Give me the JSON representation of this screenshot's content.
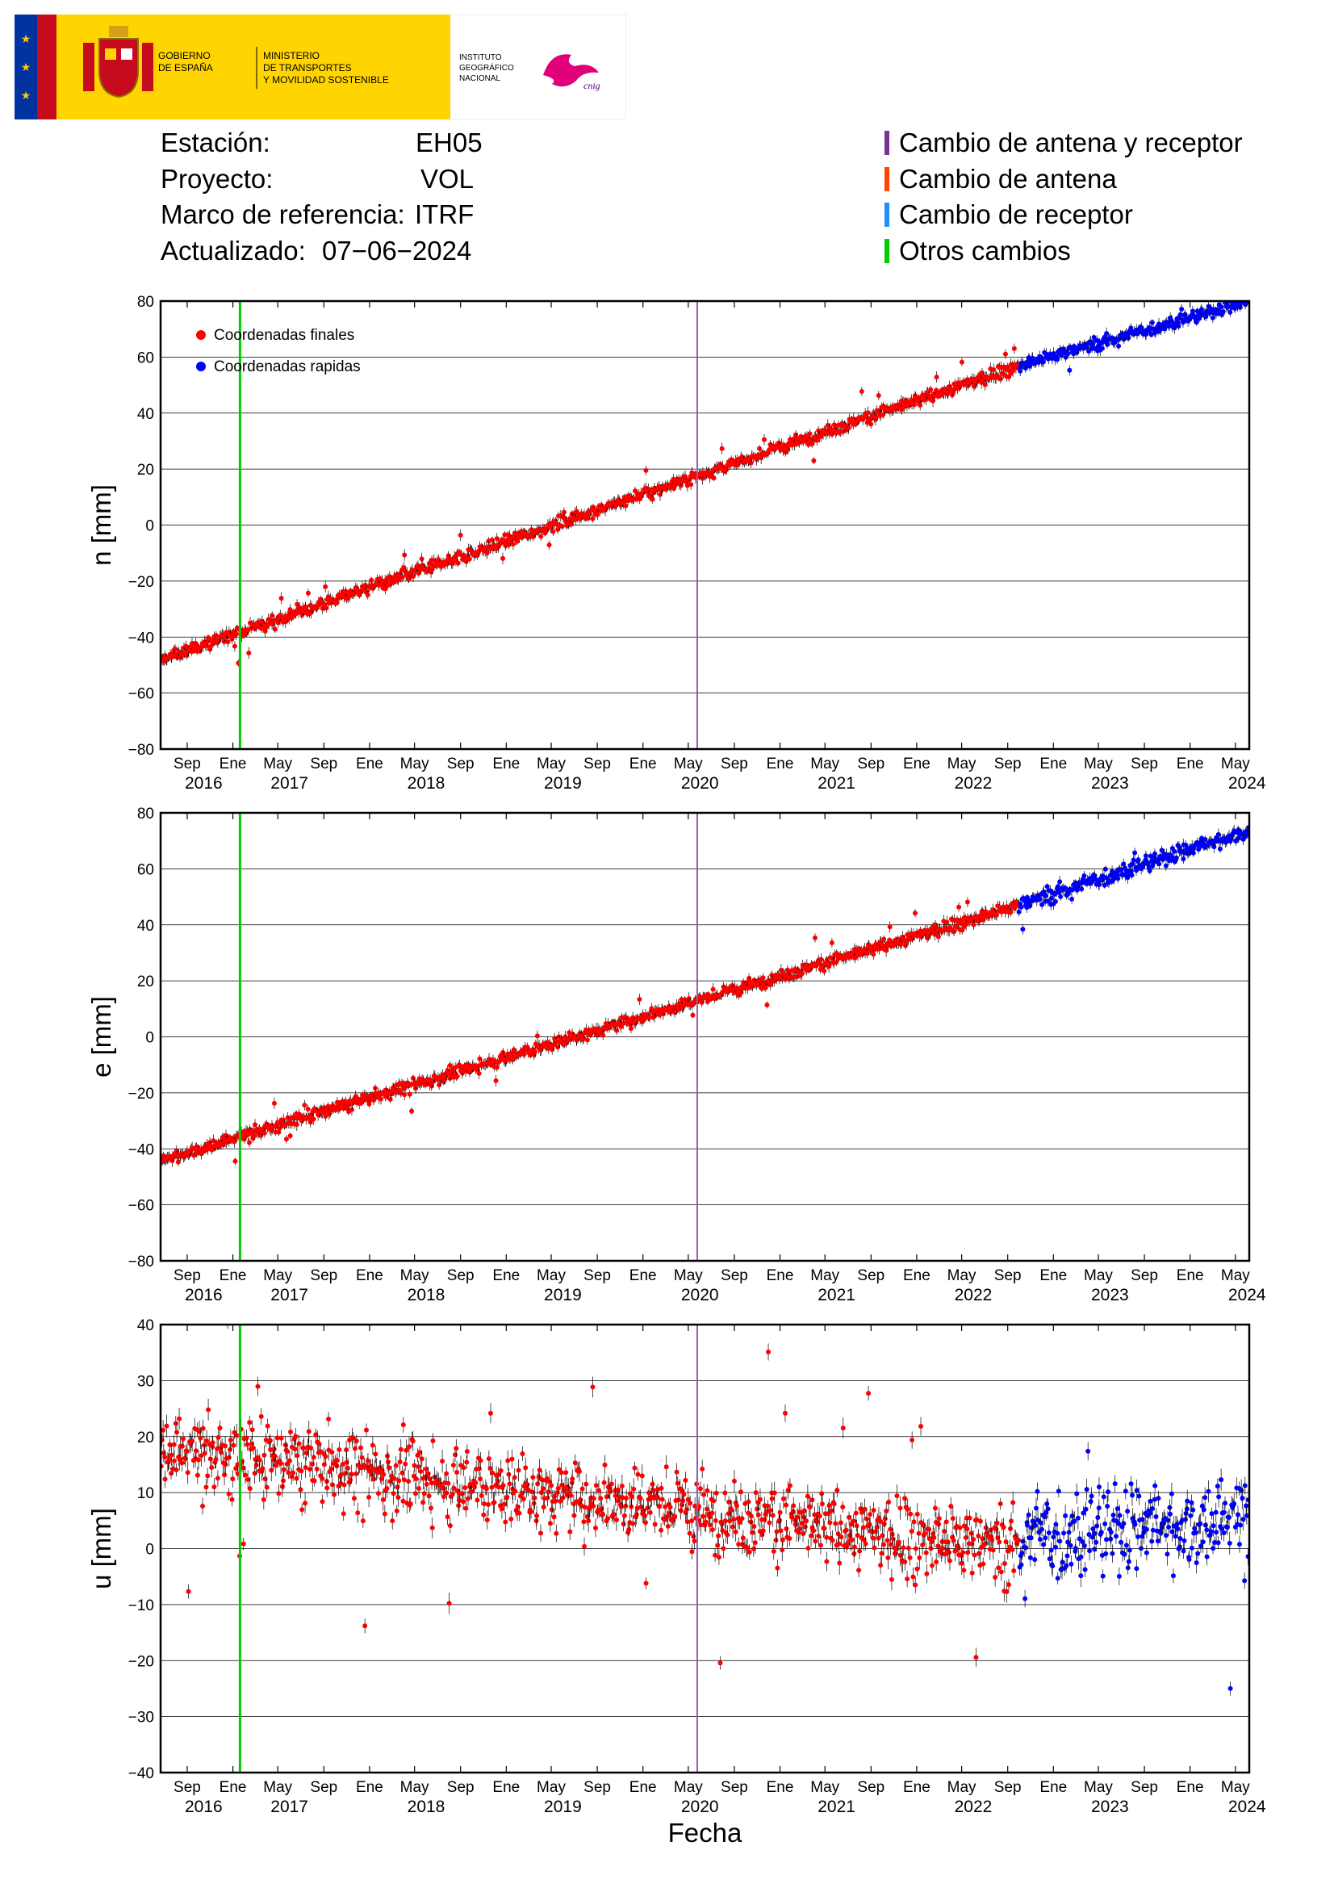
{
  "header": {
    "gov_line1": "GOBIERNO",
    "gov_line2": "DE ESPAÑA",
    "ministry_line1": "MINISTERIO",
    "ministry_line2": "DE TRANSPORTES",
    "ministry_line3": "Y MOVILIDAD SOSTENIBLE",
    "ign_line1": "INSTITUTO",
    "ign_line2": "GEOGRÁFICO",
    "ign_line3": "NACIONAL",
    "ign_logo_text": "cnig"
  },
  "station_info": {
    "station_label": "Estación:",
    "station_value": "EH05",
    "project_label": "Proyecto:",
    "project_value": "VOL",
    "frame_label": "Marco de referencia:",
    "frame_value": "ITRF",
    "updated_label": "Actualizado:",
    "updated_value": "07−06−2024"
  },
  "change_legend": [
    {
      "label": "Cambio de antena y receptor",
      "color": "#7b3294"
    },
    {
      "label": "Cambio de antena",
      "color": "#ff4500"
    },
    {
      "label": "Cambio de receptor",
      "color": "#1e90ff"
    },
    {
      "label": "Otros cambios",
      "color": "#00cc00"
    }
  ],
  "colors": {
    "final": "#ff0000",
    "rapid": "#0000ff",
    "grid": "#000000",
    "other_change": "#00cc00",
    "antenna_receiver_change": "#9b59b6"
  },
  "chart_data": [
    {
      "type": "scatter",
      "ylabel": "n [mm]",
      "ylim": [
        -80,
        80
      ],
      "yticks": [
        -80,
        -60,
        -40,
        -20,
        0,
        20,
        40,
        60,
        80
      ],
      "xlim": [
        "2016-06-22",
        "2024-06-07"
      ],
      "month_ticks": [
        "Sep",
        "Ene",
        "May",
        "Sep",
        "Ene",
        "May",
        "Sep",
        "Ene",
        "May",
        "Sep",
        "Ene",
        "May",
        "Sep",
        "Ene",
        "May",
        "Sep",
        "Ene",
        "May",
        "Sep",
        "Ene",
        "May",
        "Sep",
        "Ene",
        "May"
      ],
      "year_labels": [
        "2016",
        "2017",
        "2018",
        "2019",
        "2020",
        "2021",
        "2022",
        "2023",
        "2024"
      ],
      "legend": [
        "Coordenadas finales",
        "Coordenadas rapidas"
      ],
      "legend_position": "top-left",
      "grid": true,
      "events": [
        {
          "date": "2017-01-20",
          "kind": "Otros cambios"
        },
        {
          "date": "2020-05-25",
          "kind": "Cambio de antena y receptor"
        }
      ],
      "series": [
        {
          "name": "Coordenadas finales",
          "color": "final",
          "trend": {
            "start": [
              "2016-06-22",
              -48
            ],
            "end": [
              "2022-10-01",
              57
            ]
          },
          "scatter_sd": 3
        },
        {
          "name": "Coordenadas rapidas",
          "color": "rapid",
          "trend": {
            "start": [
              "2022-10-01",
              57
            ],
            "end": [
              "2024-06-07",
              80
            ]
          },
          "scatter_sd": 3
        }
      ]
    },
    {
      "type": "scatter",
      "ylabel": "e [mm]",
      "ylim": [
        -80,
        80
      ],
      "yticks": [
        -80,
        -60,
        -40,
        -20,
        0,
        20,
        40,
        60,
        80
      ],
      "xlim": [
        "2016-06-22",
        "2024-06-07"
      ],
      "month_ticks": [
        "Sep",
        "Ene",
        "May",
        "Sep",
        "Ene",
        "May",
        "Sep",
        "Ene",
        "May",
        "Sep",
        "Ene",
        "May",
        "Sep",
        "Ene",
        "May",
        "Sep",
        "Ene",
        "May",
        "Sep",
        "Ene",
        "May",
        "Sep",
        "Ene",
        "May"
      ],
      "year_labels": [
        "2016",
        "2017",
        "2018",
        "2019",
        "2020",
        "2021",
        "2022",
        "2023",
        "2024"
      ],
      "grid": true,
      "events": [
        {
          "date": "2017-01-20",
          "kind": "Otros cambios"
        },
        {
          "date": "2020-05-25",
          "kind": "Cambio de antena y receptor"
        }
      ],
      "series": [
        {
          "name": "Coordenadas finales",
          "color": "final",
          "trend": {
            "start": [
              "2016-06-22",
              -44
            ],
            "end": [
              "2022-10-01",
              47
            ]
          },
          "scatter_sd": 3
        },
        {
          "name": "Coordenadas rapidas",
          "color": "rapid",
          "trend": {
            "start": [
              "2022-10-01",
              47
            ],
            "end": [
              "2024-06-07",
              74
            ]
          },
          "scatter_sd": 4
        }
      ]
    },
    {
      "type": "scatter",
      "ylabel": "u [mm]",
      "xlabel": "Fecha",
      "ylim": [
        -40,
        40
      ],
      "yticks": [
        -40,
        -30,
        -20,
        -10,
        0,
        10,
        20,
        30,
        40
      ],
      "xlim": [
        "2016-06-22",
        "2024-06-07"
      ],
      "month_ticks": [
        "Sep",
        "Ene",
        "May",
        "Sep",
        "Ene",
        "May",
        "Sep",
        "Ene",
        "May",
        "Sep",
        "Ene",
        "May",
        "Sep",
        "Ene",
        "May",
        "Sep",
        "Ene",
        "May",
        "Sep",
        "Ene",
        "May",
        "Sep",
        "Ene",
        "May"
      ],
      "year_labels": [
        "2016",
        "2017",
        "2018",
        "2019",
        "2020",
        "2021",
        "2022",
        "2023",
        "2024"
      ],
      "grid": true,
      "events": [
        {
          "date": "2017-01-20",
          "kind": "Otros cambios"
        },
        {
          "date": "2020-05-25",
          "kind": "Cambio de antena y receptor"
        }
      ],
      "series": [
        {
          "name": "Coordenadas finales",
          "color": "final",
          "trend": {
            "start": [
              "2016-06-22",
              18
            ],
            "end": [
              "2022-10-01",
              0
            ]
          },
          "scatter_sd": 9
        },
        {
          "name": "Coordenadas rapidas",
          "color": "rapid",
          "trend": {
            "start": [
              "2022-10-01",
              2
            ],
            "end": [
              "2024-06-07",
              6
            ]
          },
          "scatter_sd": 11
        }
      ]
    }
  ]
}
